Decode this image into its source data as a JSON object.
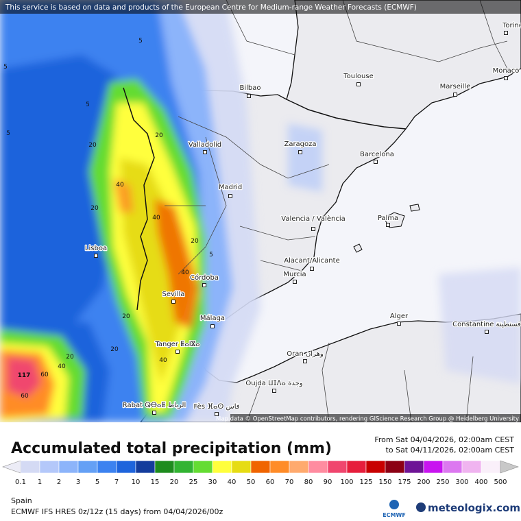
{
  "banner": "This service is based on data and products of the European Centre for Medium-range Weather Forecasts (ECMWF)",
  "map": {
    "cities": [
      "Bilbao",
      "Toulouse",
      "Monaco",
      "Marseille",
      "Torino",
      "Valladolid",
      "Zaragoza",
      "Barcelona",
      "Madrid",
      "Valencia / València",
      "Palma",
      "Lisboa",
      "Alacant/Alicante",
      "Murcia",
      "Córdoba",
      "Sevilla",
      "Málaga",
      "Alger",
      "Constantine قسنطينة",
      "Tanger ⵟⴰⵏⴵⴰ",
      "Oran وهران",
      "Oujda ⵡⵊⴷⴰ وجدة",
      "Rabat ⵕⴱⴰⵟ الرباط",
      "Fès ⴼⴰⵙ فاس"
    ],
    "contour_labels": [
      5,
      5,
      5,
      5,
      20,
      20,
      40,
      20,
      40,
      20,
      5,
      40,
      20,
      20,
      40,
      20,
      40,
      60,
      60,
      117
    ],
    "attribution": "Map data © OpenStreetMap contributors, rendering GIScience Research Group @ Heidelberg University"
  },
  "title": "Accumulated total precipitation (mm)",
  "period": {
    "from": "From Sat 04/04/2026, 02:00am CEST",
    "to": "to Sat 04/11/2026, 02:00am CEST"
  },
  "scale": {
    "labels": [
      0.1,
      1,
      2,
      3,
      5,
      7,
      10,
      15,
      20,
      25,
      30,
      40,
      50,
      60,
      70,
      80,
      90,
      100,
      125,
      150,
      175,
      200,
      250,
      300,
      400,
      500
    ],
    "colors": [
      "#ececf6",
      "#d4daf4",
      "#b4c8fa",
      "#8cb4fa",
      "#64a0f5",
      "#3c82f0",
      "#1e64dc",
      "#143c9c",
      "#1e8c1e",
      "#32b432",
      "#64dc32",
      "#ffff3c",
      "#e6dc14",
      "#f06400",
      "#ff8c28",
      "#ffaa6e",
      "#ff8ca0",
      "#f0466e",
      "#e61e3c",
      "#c80000",
      "#8c0014",
      "#6e1496",
      "#c814f0",
      "#dc78f0",
      "#f0b4f0",
      "#faf0fa",
      "#c8c8c8"
    ]
  },
  "region": "Spain",
  "model": "ECMWF IFS HRES 0z/12z (15 days) from  04/04/2026/00z",
  "logos": {
    "ecmwf": "ECMWF",
    "meteologix": "meteologix.com"
  }
}
